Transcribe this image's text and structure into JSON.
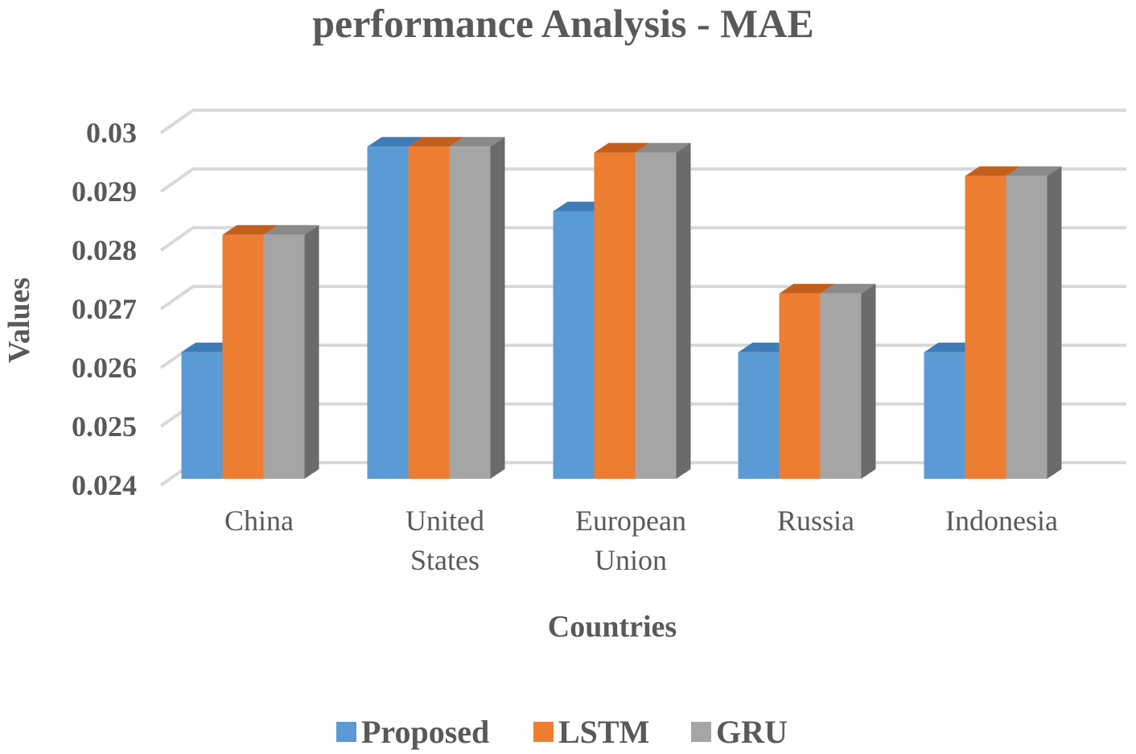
{
  "chart_data": {
    "type": "bar",
    "title": "performance Analysis - MAE",
    "xlabel": "Countries",
    "ylabel": "Values",
    "ylim": [
      0.024,
      0.03
    ],
    "yticks": [
      "0.024",
      "0.025",
      "0.026",
      "0.027",
      "0.028",
      "0.029",
      "0.03"
    ],
    "categories": [
      [
        "China"
      ],
      [
        "United",
        "States"
      ],
      [
        "European",
        "Union"
      ],
      [
        "Russia"
      ],
      [
        "Indonesia"
      ]
    ],
    "series": [
      {
        "name": "Proposed",
        "color": "#5B9BD5",
        "top_color": "#3E7CB8",
        "side_color": "#2E6399",
        "values": [
          0.0264,
          0.0299,
          0.0288,
          0.0264,
          0.0264
        ]
      },
      {
        "name": "LSTM",
        "color": "#ED7D31",
        "top_color": "#C45E1B",
        "side_color": "#A44E16",
        "values": [
          0.0284,
          0.0299,
          0.0298,
          0.0274,
          0.0294
        ]
      },
      {
        "name": "GRU",
        "color": "#A5A5A5",
        "top_color": "#8A8A8A",
        "side_color": "#6B6B6B",
        "values": [
          0.0284,
          0.0299,
          0.0298,
          0.0274,
          0.0294
        ]
      }
    ],
    "grid": true,
    "legend_position": "bottom"
  }
}
